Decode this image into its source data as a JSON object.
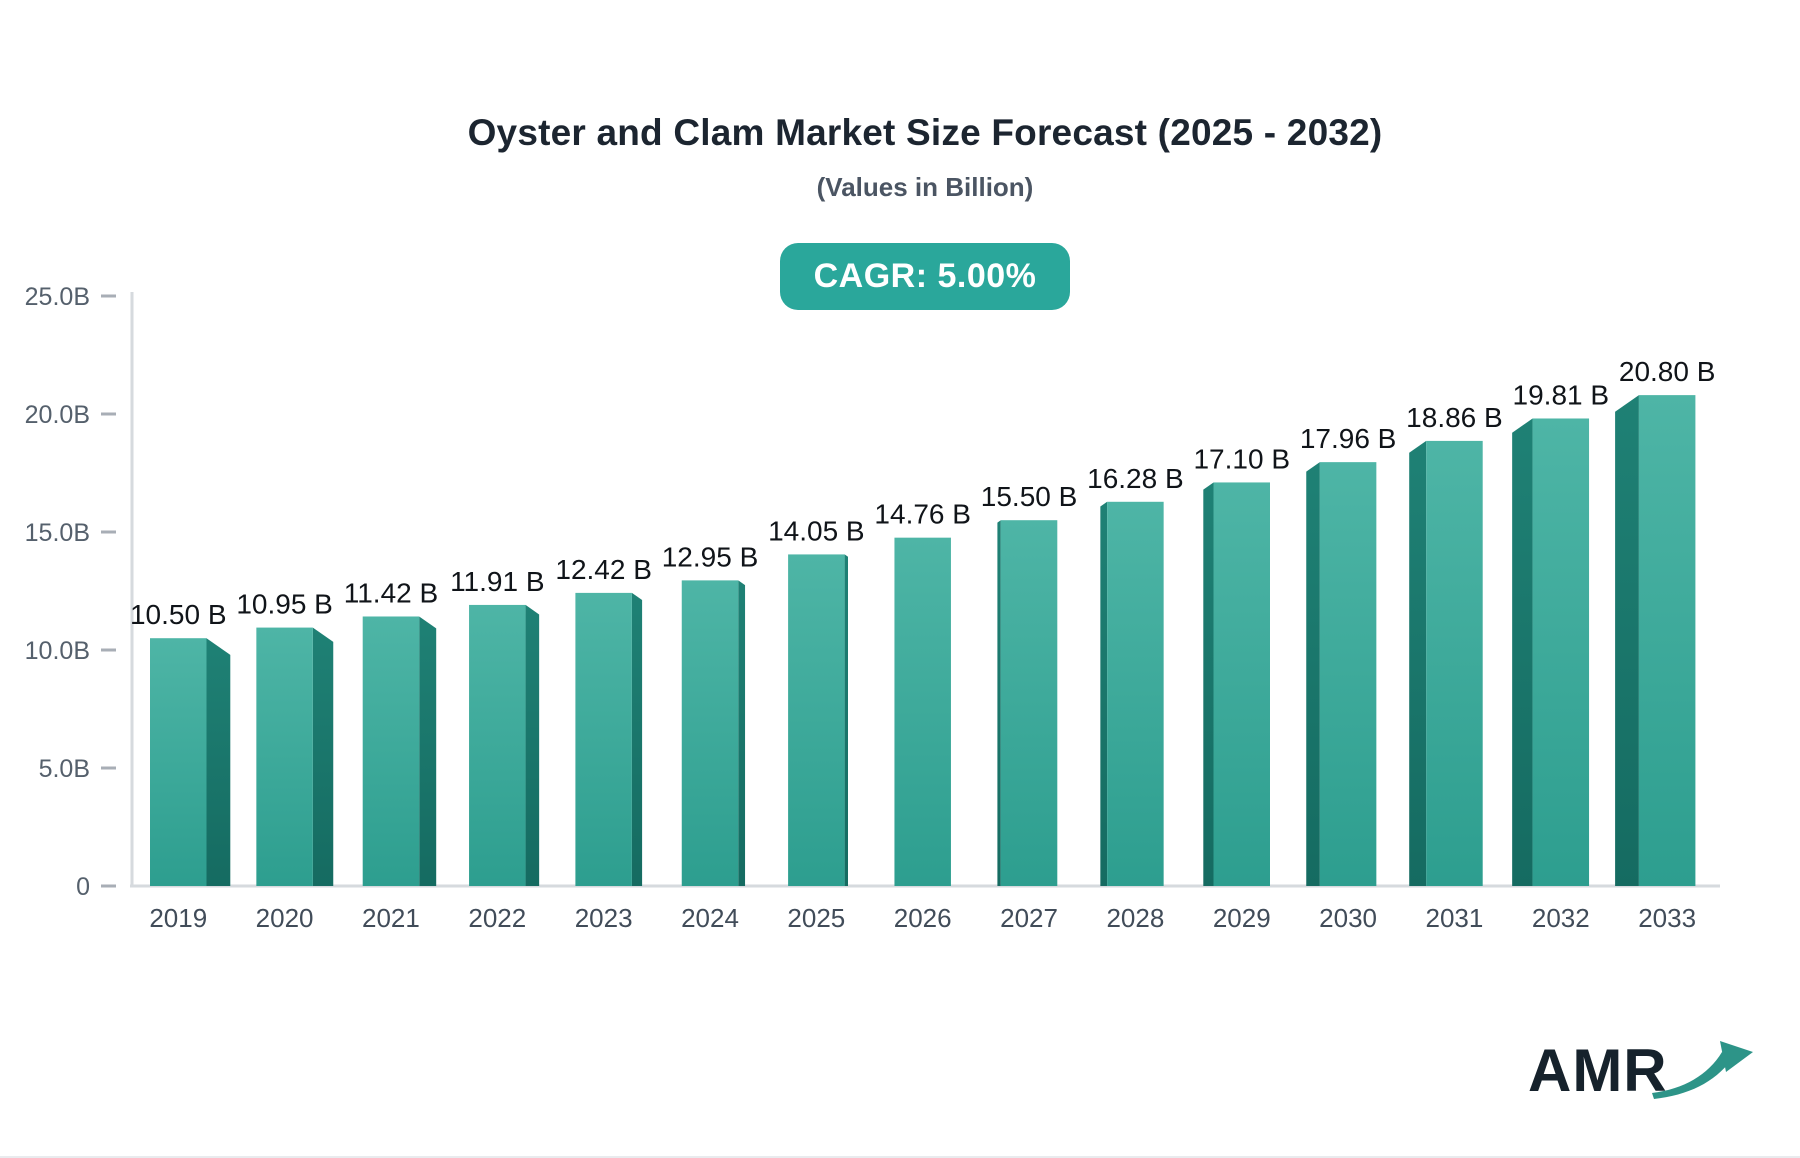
{
  "header": {
    "title": "Oyster and Clam Market Size Forecast (2025 - 2032)",
    "subtitle": "(Values in Billion)",
    "cagr_label": "CAGR: 5.00%"
  },
  "chart_data": {
    "type": "bar",
    "title": "Oyster and Clam Market Size Forecast (2025 - 2032)",
    "subtitle": "(Values in Billion)",
    "cagr": "5.00%",
    "categories": [
      "2019",
      "2020",
      "2021",
      "2022",
      "2023",
      "2024",
      "2025",
      "2026",
      "2027",
      "2028",
      "2029",
      "2030",
      "2031",
      "2032",
      "2033"
    ],
    "values": [
      10.5,
      10.95,
      11.42,
      11.91,
      12.42,
      12.95,
      14.05,
      14.76,
      15.5,
      16.28,
      17.1,
      17.96,
      18.86,
      19.81,
      20.8
    ],
    "value_suffix": " B",
    "xlabel": "",
    "ylabel": "",
    "ylim": [
      0,
      25
    ],
    "ytick_step": 5,
    "ytick_labels": [
      "0",
      "5.0B",
      "10.0B",
      "15.0B",
      "20.0B",
      "25.0B"
    ],
    "grid": false,
    "legend_position": "none",
    "style": "3d-column-perspective",
    "colors": {
      "bar_front_top": "#4eb5a6",
      "bar_front_bottom": "#2d9e8f",
      "bar_side_top": "#1f8175",
      "bar_side_bottom": "#156b61",
      "axis_line": "#d6dade",
      "tick_mark": "#a8aeb6",
      "tick_label": "#55606c",
      "category_label": "#414c59",
      "value_label": "#101419",
      "badge_background": "#2aa79b",
      "badge_text": "#ffffff"
    }
  },
  "branding": {
    "logo_text": "AMR",
    "logo_text_color": "#16222c",
    "logo_arrow_color": "#2d9488"
  }
}
